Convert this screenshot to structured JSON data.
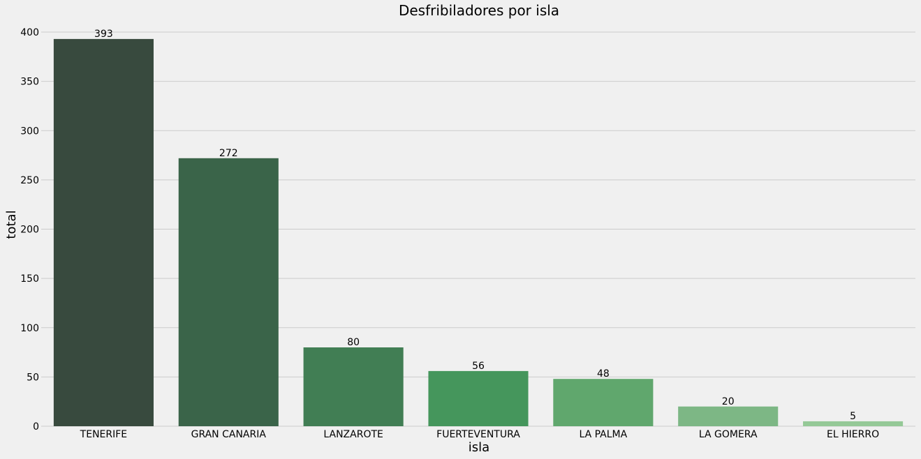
{
  "chart_data": {
    "type": "bar",
    "title": "Desfribiladores por isla",
    "xlabel": "isla",
    "ylabel": "total",
    "categories": [
      "TENERIFE",
      "GRAN CANARIA",
      "LANZAROTE",
      "FUERTEVENTURA",
      "LA PALMA",
      "LA GOMERA",
      "EL HIERRO"
    ],
    "values": [
      393,
      272,
      80,
      56,
      48,
      20,
      5
    ],
    "colors": [
      "#384a3e",
      "#3a6449",
      "#417e54",
      "#45965c",
      "#60a76d",
      "#7db785",
      "#95c997"
    ],
    "ylim": [
      0,
      400
    ],
    "yticks": [
      0,
      50,
      100,
      150,
      200,
      250,
      300,
      350,
      400
    ],
    "grid": "horizontal",
    "show_value_labels": true
  }
}
